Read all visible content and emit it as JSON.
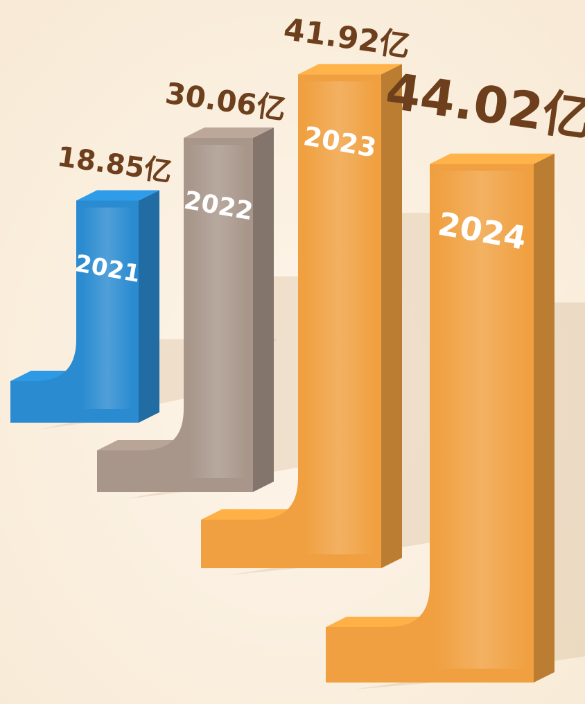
{
  "chart_data": {
    "type": "bar3d",
    "categories": [
      "2021",
      "2022",
      "2023",
      "2024"
    ],
    "values": [
      18.85,
      30.06,
      41.92,
      44.02
    ],
    "value_labels": [
      "18.85亿",
      "30.06亿",
      "41.92亿",
      "44.02亿"
    ],
    "colors": [
      "#2a8bd0",
      "#a8968a",
      "#f0a040",
      "#f0a040"
    ]
  }
}
